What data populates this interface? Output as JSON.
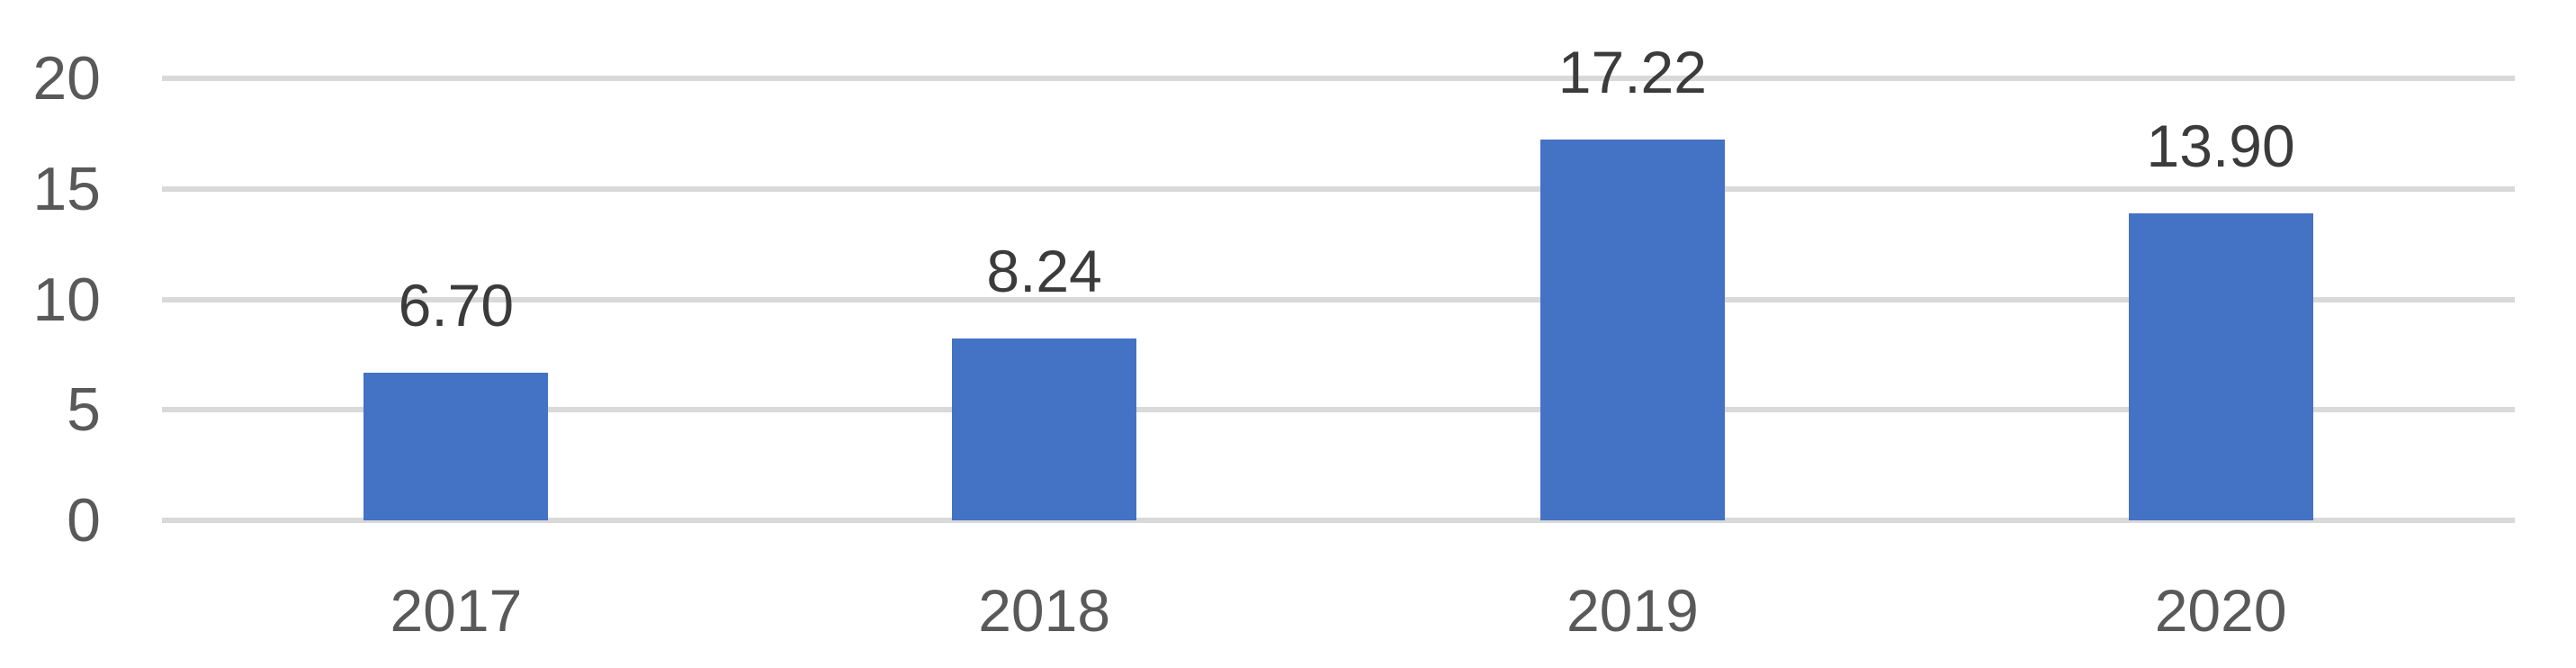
{
  "chart_data": {
    "type": "bar",
    "title": "",
    "xlabel": "",
    "ylabel": "",
    "categories": [
      "2017",
      "2018",
      "2019",
      "2020"
    ],
    "values": [
      6.7,
      8.24,
      17.22,
      13.9
    ],
    "data_labels": [
      "6.70",
      "8.24",
      "17.22",
      "13.90"
    ],
    "ylim": [
      0,
      20
    ],
    "yticks": [
      0,
      5,
      10,
      15,
      20
    ],
    "ytick_labels": [
      "0",
      "5",
      "10",
      "15",
      "20"
    ],
    "grid": "horizontal",
    "legend": "none",
    "colors": {
      "bar": "#4472C4",
      "gridline": "#D9D9D9",
      "axis_tick_label": "#595959",
      "data_label": "#3B3B3B",
      "background": "#FFFFFF"
    }
  }
}
